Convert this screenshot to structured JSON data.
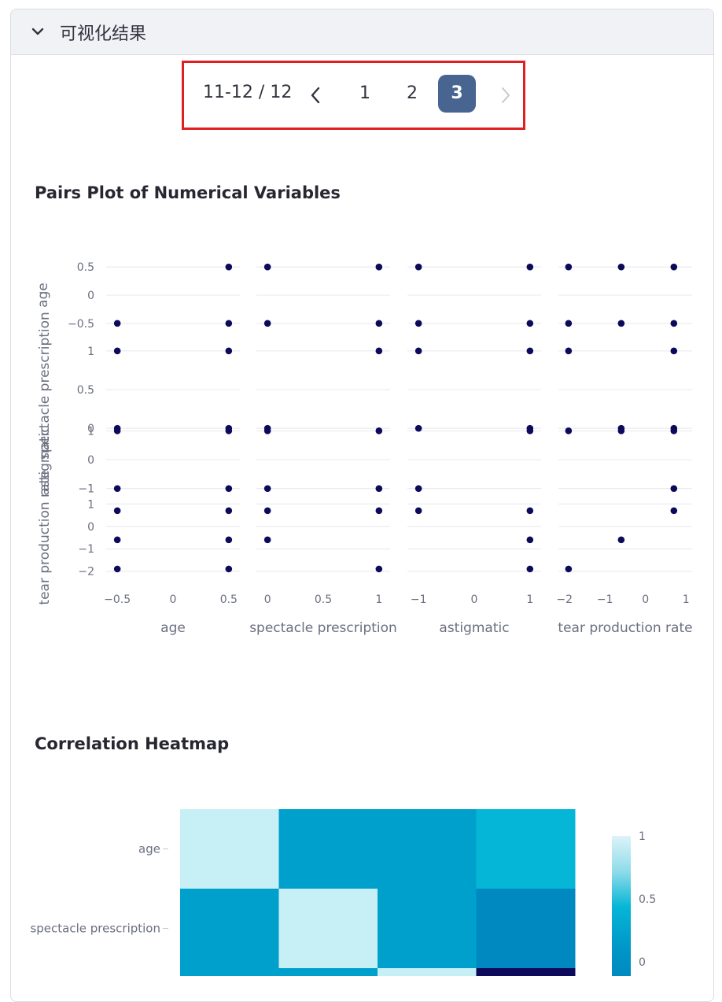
{
  "panel": {
    "title": "可视化结果",
    "icon": "chevron-down-icon"
  },
  "pagination": {
    "range_text": "11-12 / 12",
    "pages": [
      "1",
      "2",
      "3"
    ],
    "active_page": "3",
    "prev_icon": "chevron-left-icon",
    "next_icon": "chevron-right-icon"
  },
  "pairs_plot": {
    "title": "Pairs Plot of Numerical Variables"
  },
  "heatmap": {
    "title": "Correlation Heatmap"
  },
  "chart_data": [
    {
      "type": "scatter",
      "title": "Pairs Plot of Numerical Variables",
      "marker_color": "#0d0a5c",
      "variables": [
        "age",
        "spectacle prescription",
        "astigmatic",
        "tear production rate"
      ],
      "x_ticks": [
        [
          "−0.5",
          "0",
          "0.5"
        ],
        [
          "0",
          "0.5",
          "1"
        ],
        [
          "−1",
          "0",
          "1"
        ],
        [
          "−2",
          "−1",
          "0",
          "1"
        ]
      ],
      "y_ticks": [
        [
          "0.5",
          "0",
          "−0.5"
        ],
        [
          "1",
          "0.5",
          "0"
        ],
        [
          "1",
          "0",
          "−1"
        ],
        [
          "1",
          "0",
          "−1",
          "−2"
        ]
      ],
      "x_tick_values": [
        [
          -0.5,
          0,
          0.5
        ],
        [
          0,
          0.5,
          1
        ],
        [
          -1,
          0,
          1
        ],
        [
          -2,
          -1,
          0,
          1
        ]
      ],
      "y_tick_values": [
        [
          0.5,
          0,
          -0.5
        ],
        [
          1,
          0.5,
          0
        ],
        [
          1,
          0,
          -1
        ],
        [
          1,
          0,
          -1,
          -2
        ]
      ],
      "ranges": [
        [
          -0.6,
          0.6
        ],
        [
          -0.1,
          1.1
        ],
        [
          -1.2,
          1.2
        ],
        [
          -2.15,
          1.15
        ]
      ],
      "cells": [
        [
          {
            "x": [
              -0.5,
              0.5,
              0.5
            ],
            "y": [
              -0.5,
              0.5,
              -0.5
            ]
          },
          {
            "x": [
              0,
              1,
              0,
              1
            ],
            "y": [
              0.5,
              0.5,
              -0.5,
              -0.5
            ]
          },
          {
            "x": [
              -1,
              1,
              -1,
              1
            ],
            "y": [
              0.5,
              0.5,
              -0.5,
              -0.5
            ]
          },
          {
            "x": [
              -1.9,
              -0.6,
              0.7,
              -1.9,
              -0.6,
              0.7
            ],
            "y": [
              0.5,
              0.5,
              0.5,
              -0.5,
              -0.5,
              -0.5
            ]
          }
        ],
        [
          {
            "x": [
              -0.5,
              0.5,
              -0.5,
              0.5
            ],
            "y": [
              1,
              1,
              0,
              0
            ]
          },
          {
            "x": [
              1,
              0
            ],
            "y": [
              1,
              0
            ]
          },
          {
            "x": [
              -1,
              1,
              -1,
              1
            ],
            "y": [
              1,
              1,
              0,
              0
            ]
          },
          {
            "x": [
              -1.9,
              0.7,
              -0.6,
              0.7
            ],
            "y": [
              1,
              1,
              0,
              0
            ]
          }
        ],
        [
          {
            "x": [
              -0.5,
              0.5,
              -0.5,
              0.5
            ],
            "y": [
              1,
              1,
              -1,
              -1
            ]
          },
          {
            "x": [
              0,
              1,
              0,
              1
            ],
            "y": [
              1,
              1,
              -1,
              -1
            ]
          },
          {
            "x": [
              1,
              -1
            ],
            "y": [
              1,
              -1
            ]
          },
          {
            "x": [
              -1.9,
              -0.6,
              0.7,
              0.7
            ],
            "y": [
              1,
              1,
              1,
              -1
            ]
          }
        ],
        [
          {
            "x": [
              -0.5,
              0.5,
              -0.5,
              0.5,
              -0.5,
              0.5
            ],
            "y": [
              0.7,
              0.7,
              -0.6,
              -0.6,
              -1.9,
              -1.9
            ]
          },
          {
            "x": [
              0,
              1,
              0,
              1
            ],
            "y": [
              0.7,
              0.7,
              -0.6,
              -1.9
            ]
          },
          {
            "x": [
              -1,
              1,
              1,
              1
            ],
            "y": [
              0.7,
              0.7,
              -0.6,
              -1.9
            ]
          },
          {
            "x": [
              0.7,
              -0.6,
              -1.9
            ],
            "y": [
              0.7,
              -0.6,
              -1.9
            ]
          }
        ]
      ]
    },
    {
      "type": "heatmap",
      "title": "Correlation Heatmap",
      "rows_visible": [
        "age",
        "spectacle prescription"
      ],
      "colorbar_ticks": [
        "1",
        "0.5",
        "0"
      ],
      "colorbar_tick_values": [
        1,
        0.5,
        0
      ],
      "colorscale": [
        "#0d0a5c",
        "#0089c0",
        "#00a0cc",
        "#06b6d6",
        "#c7eff6"
      ],
      "matrix": [
        [
          1,
          0.05,
          0.05,
          0.3
        ],
        [
          0.05,
          1,
          0.05,
          -0.2
        ],
        [
          0.05,
          0.05,
          1,
          -1
        ]
      ]
    }
  ]
}
